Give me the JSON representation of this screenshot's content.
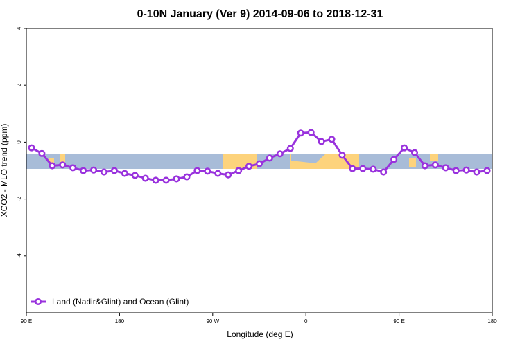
{
  "chart_data": {
    "type": "line",
    "title": "0-10N January (Ver 9)   2014-09-06 to 2018-12-31",
    "x_label": "Longitude (deg E)",
    "y_label": "XCO2 - MLO trend (ppm)",
    "x": [
      95,
      105,
      115,
      125,
      135,
      145,
      155,
      165,
      175,
      185,
      195,
      205,
      215,
      225,
      235,
      245,
      255,
      265,
      275,
      285,
      295,
      305,
      315,
      325,
      335,
      345,
      355,
      365,
      375,
      385,
      395,
      405,
      415,
      425,
      435,
      445,
      455,
      465,
      475,
      485,
      495,
      505,
      515,
      525,
      535
    ],
    "series": [
      {
        "name": "Land (Nadir&Glint) and Ocean (Glint)",
        "color": "#9932dd",
        "values": [
          -0.2,
          -0.4,
          -0.83,
          -0.8,
          -0.9,
          -1.0,
          -0.98,
          -1.05,
          -1.0,
          -1.1,
          -1.17,
          -1.27,
          -1.34,
          -1.34,
          -1.29,
          -1.22,
          -1.0,
          -1.02,
          -1.1,
          -1.15,
          -1.0,
          -0.85,
          -0.76,
          -0.56,
          -0.41,
          -0.22,
          0.32,
          0.34,
          0.02,
          0.1,
          -0.46,
          -0.93,
          -0.93,
          -0.95,
          -1.05,
          -0.61,
          -0.2,
          -0.37,
          -0.83,
          -0.8,
          -0.9,
          -1.0,
          -0.98,
          -1.05,
          -1.0
        ]
      }
    ],
    "xlim": [
      90,
      540
    ],
    "xticks": [
      {
        "value": 90,
        "label": "90 E"
      },
      {
        "value": 180,
        "label": "180"
      },
      {
        "value": 270,
        "label": "90 W"
      },
      {
        "value": 360,
        "label": "0"
      },
      {
        "value": 450,
        "label": "90 E"
      },
      {
        "value": 540,
        "label": "180"
      }
    ],
    "ylim": [
      -6,
      4
    ],
    "yticks": [
      4,
      2,
      0,
      -2,
      -4
    ],
    "legend": "bottom-left"
  }
}
